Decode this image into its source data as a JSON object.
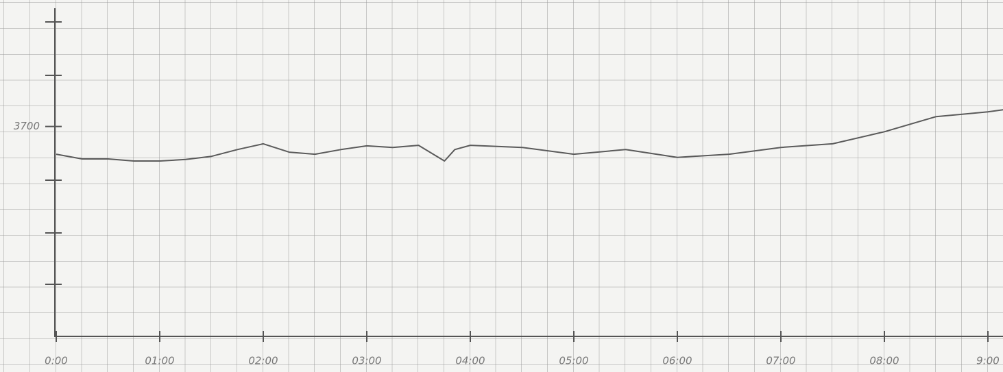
{
  "chart_data": {
    "type": "line",
    "x": [
      0,
      0.25,
      0.5,
      0.75,
      1,
      1.25,
      1.5,
      1.75,
      2,
      2.25,
      2.5,
      2.75,
      3,
      3.25,
      3.5,
      3.75,
      3.85,
      4,
      4.5,
      5,
      5.5,
      6,
      6.5,
      7,
      7.5,
      8,
      8.5,
      9,
      9.15
    ],
    "values": [
      3647,
      3638,
      3638,
      3634,
      3634,
      3637,
      3643,
      3656,
      3667,
      3651,
      3647,
      3656,
      3663,
      3660,
      3664,
      3634,
      3656,
      3664,
      3660,
      3647,
      3656,
      3641,
      3647,
      3660,
      3667,
      3690,
      3719,
      3728,
      3732
    ],
    "color": "#5a5a5a",
    "xlim": [
      0,
      9.15
    ],
    "xticks": [
      {
        "value": 0,
        "label": "0:00"
      },
      {
        "value": 1,
        "label": "01:00"
      },
      {
        "value": 2,
        "label": "02:00"
      },
      {
        "value": 3,
        "label": "03:00"
      },
      {
        "value": 4,
        "label": "04:00"
      },
      {
        "value": 5,
        "label": "05:00"
      },
      {
        "value": 6,
        "label": "06:00"
      },
      {
        "value": 7,
        "label": "07:00"
      },
      {
        "value": 8,
        "label": "08:00"
      },
      {
        "value": 9,
        "label": "9:00"
      }
    ],
    "ylim": [
      3300,
      3900
    ],
    "yticks": [
      3700
    ]
  }
}
